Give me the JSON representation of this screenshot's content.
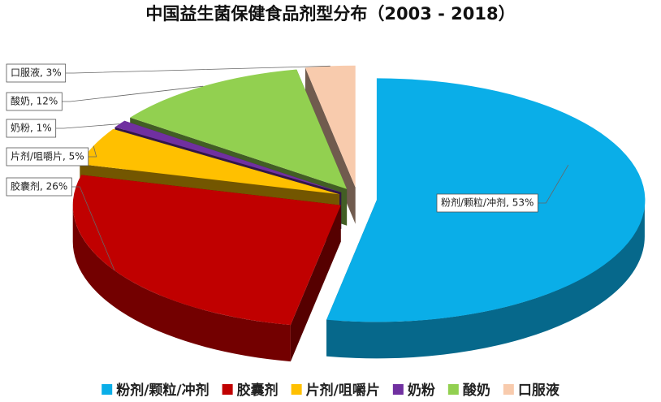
{
  "chart_data": {
    "type": "pie3d",
    "title": "中国益生菌保健食品剂型分布（2003 - 2018）",
    "categories": [
      "粉剂/颗粒/冲剂",
      "胶囊剂",
      "片剂/咀嚼片",
      "奶粉",
      "酸奶",
      "口服液"
    ],
    "values": [
      53,
      26,
      5,
      1,
      12,
      3
    ],
    "value_labels": [
      "粉剂/颗粒/冲剂, 53%",
      "胶囊剂, 26%",
      "片剂/咀嚼片, 5%",
      "奶粉, 1%",
      "酸奶, 12%",
      "口服液, 3%"
    ],
    "colors": [
      "#0aaee8",
      "#c00000",
      "#ffc000",
      "#7030a0",
      "#92d050",
      "#f8cbad"
    ],
    "legend": "bottom"
  }
}
